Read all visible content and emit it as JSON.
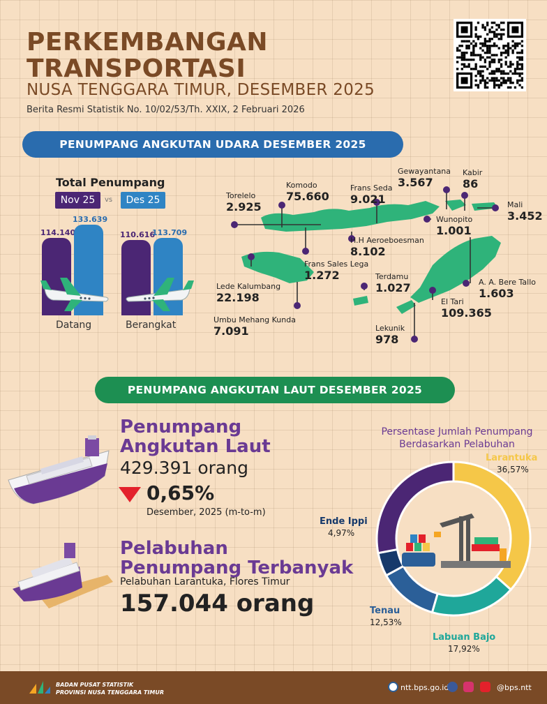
{
  "header": {
    "title_line1": "PERKEMBANGAN",
    "title_line2": "TRANSPORTASI",
    "title_line3": "NUSA TENGGARA TIMUR, DESEMBER 2025",
    "subtitle": "Berita Resmi Statistik No. 10/02/53/Th. XXIX, 2 Februari 2026"
  },
  "air": {
    "banner": "PENUMPANG ANGKUTAN UDARA DESEMBER 2025",
    "total_label": "Total Penumpang",
    "legend_nov": "Nov 25",
    "legend_vs": "vs",
    "legend_des": "Des 25",
    "chart_data": {
      "type": "bar",
      "categories": [
        "Datang",
        "Berangkat"
      ],
      "series": [
        {
          "name": "Nov 25",
          "values": [
            114140,
            110616
          ],
          "labels": [
            "114.140",
            "110.616"
          ]
        },
        {
          "name": "Des 25",
          "values": [
            133639,
            113709
          ],
          "labels": [
            "133.639",
            "113.709"
          ]
        }
      ]
    },
    "airports": [
      {
        "name": "Torelelo",
        "value": "2.925"
      },
      {
        "name": "Komodo",
        "value": "75.660"
      },
      {
        "name": "Frans Seda",
        "value": "9.021"
      },
      {
        "name": "Gewayantana",
        "value": "3.567"
      },
      {
        "name": "Kabir",
        "value": "86"
      },
      {
        "name": "Mali",
        "value": "3.452"
      },
      {
        "name": "Wunopito",
        "value": "1.001"
      },
      {
        "name": "H.H Aeroeboesman",
        "value": "8.102"
      },
      {
        "name": "Frans Sales Lega",
        "value": "1.272"
      },
      {
        "name": "Lede Kalumbang",
        "value": "22.198"
      },
      {
        "name": "Umbu Mehang Kunda",
        "value": "7.091"
      },
      {
        "name": "Terdamu",
        "value": "1.027"
      },
      {
        "name": "A. A. Bere Tallo",
        "value": "1.603"
      },
      {
        "name": "El Tari",
        "value": "109.365"
      },
      {
        "name": "Lekunik",
        "value": "978"
      }
    ]
  },
  "sea": {
    "banner": "PENUMPANG ANGKUTAN LAUT DESEMBER 2025",
    "title_line1": "Penumpang",
    "title_line2": "Angkutan Laut",
    "count": "429.391 orang",
    "change": "0,65%",
    "period": "Desember, 2025 (m-to-m)",
    "port_title_line1": "Pelabuhan",
    "port_title_line2": "Penumpang Terbanyak",
    "port_name": "Pelabuhan Larantuka, Flores Timur",
    "port_count": "157.044 orang",
    "donut": {
      "title_line1": "Persentase Jumlah Penumpang",
      "title_line2": "Berdasarkan Pelabuhan",
      "chart_data": {
        "type": "pie",
        "slices": [
          {
            "name": "Larantuka",
            "value": 36.57,
            "label": "36,57%",
            "color": "#f5c748"
          },
          {
            "name": "Labuan Bajo",
            "value": 17.92,
            "label": "17,92%",
            "color": "#1fa79a"
          },
          {
            "name": "Tenau",
            "value": 12.53,
            "label": "12,53%",
            "color": "#2b5f98"
          },
          {
            "name": "Ende Ippi",
            "value": 4.97,
            "label": "4,97%",
            "color": "#16396b"
          },
          {
            "name": "",
            "value": 28.01,
            "label": "",
            "color": "#4b2674"
          }
        ]
      }
    }
  },
  "footer": {
    "org_line1": "BADAN PUSAT STATISTIK",
    "org_line2": "PROVINSI NUSA TENGGARA TIMUR",
    "website": "ntt.bps.go.id",
    "social": "@bps.ntt"
  }
}
